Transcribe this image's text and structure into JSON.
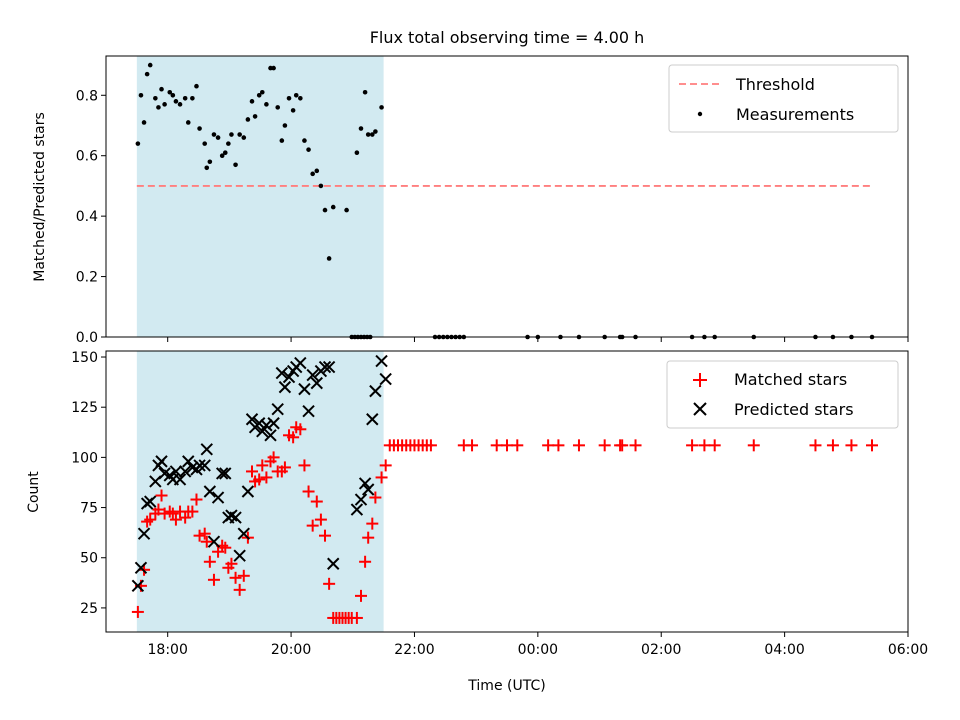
{
  "chart_data": [
    {
      "type": "scatter",
      "title": "Flux total observing time = 4.00 h",
      "xlabel": "",
      "ylabel": "Matched/Predicted stars",
      "ylim": [
        0,
        0.93
      ],
      "xlim": [
        "17:00",
        "06:00"
      ],
      "yticks": [
        0.0,
        0.2,
        0.4,
        0.6,
        0.8
      ],
      "ytick_labels": [
        "0.0",
        "0.2",
        "0.4",
        "0.6",
        "0.8"
      ],
      "legend": "top-right",
      "shaded_interval": {
        "start": "17:30",
        "end": "21:30",
        "color": "#add8e6"
      },
      "threshold": {
        "name": "Threshold",
        "y": 0.5,
        "x_start": "17:30",
        "x_end": "05:25",
        "color": "#ff7f7f",
        "style": "dashed"
      },
      "series": [
        {
          "name": "Measurements",
          "color": "#000000",
          "marker": "dot",
          "points": [
            [
              "17:31",
              0.64
            ],
            [
              "17:34",
              0.8
            ],
            [
              "17:37",
              0.71
            ],
            [
              "17:40",
              0.87
            ],
            [
              "17:43",
              0.9
            ],
            [
              "17:48",
              0.79
            ],
            [
              "17:51",
              0.76
            ],
            [
              "17:54",
              0.82
            ],
            [
              "17:57",
              0.77
            ],
            [
              "18:02",
              0.81
            ],
            [
              "18:05",
              0.8
            ],
            [
              "18:08",
              0.78
            ],
            [
              "18:12",
              0.77
            ],
            [
              "18:17",
              0.79
            ],
            [
              "18:20",
              0.71
            ],
            [
              "18:24",
              0.79
            ],
            [
              "18:28",
              0.83
            ],
            [
              "18:31",
              0.69
            ],
            [
              "18:36",
              0.64
            ],
            [
              "18:38",
              0.56
            ],
            [
              "18:41",
              0.58
            ],
            [
              "18:45",
              0.67
            ],
            [
              "18:49",
              0.66
            ],
            [
              "18:53",
              0.6
            ],
            [
              "18:56",
              0.61
            ],
            [
              "18:59",
              0.64
            ],
            [
              "19:02",
              0.67
            ],
            [
              "19:06",
              0.57
            ],
            [
              "19:10",
              0.67
            ],
            [
              "19:14",
              0.66
            ],
            [
              "19:18",
              0.72
            ],
            [
              "19:22",
              0.78
            ],
            [
              "19:25",
              0.73
            ],
            [
              "19:29",
              0.8
            ],
            [
              "19:32",
              0.81
            ],
            [
              "19:36",
              0.77
            ],
            [
              "19:40",
              0.89
            ],
            [
              "19:43",
              0.89
            ],
            [
              "19:47",
              0.76
            ],
            [
              "19:51",
              0.65
            ],
            [
              "19:54",
              0.7
            ],
            [
              "19:58",
              0.79
            ],
            [
              "20:02",
              0.75
            ],
            [
              "20:05",
              0.8
            ],
            [
              "20:09",
              0.79
            ],
            [
              "20:13",
              0.65
            ],
            [
              "20:17",
              0.62
            ],
            [
              "20:21",
              0.54
            ],
            [
              "20:25",
              0.55
            ],
            [
              "20:29",
              0.5
            ],
            [
              "20:33",
              0.42
            ],
            [
              "20:37",
              0.26
            ],
            [
              "20:41",
              0.43
            ],
            [
              "20:54",
              0.42
            ],
            [
              "21:04",
              0.61
            ],
            [
              "21:08",
              0.69
            ],
            [
              "21:12",
              0.81
            ],
            [
              "21:15",
              0.67
            ],
            [
              "21:19",
              0.67
            ],
            [
              "21:22",
              0.68
            ],
            [
              "21:28",
              0.76
            ],
            [
              "20:59",
              0.0
            ],
            [
              "21:02",
              0.0
            ],
            [
              "21:05",
              0.0
            ],
            [
              "21:08",
              0.0
            ],
            [
              "21:11",
              0.0
            ],
            [
              "21:14",
              0.0
            ],
            [
              "21:17",
              0.0
            ],
            [
              "22:20",
              0.0
            ],
            [
              "22:24",
              0.0
            ],
            [
              "22:28",
              0.0
            ],
            [
              "22:32",
              0.0
            ],
            [
              "22:36",
              0.0
            ],
            [
              "22:40",
              0.0
            ],
            [
              "22:44",
              0.0
            ],
            [
              "22:48",
              0.0
            ],
            [
              "23:50",
              0.0
            ],
            [
              "24:00",
              0.0
            ],
            [
              "24:22",
              0.0
            ],
            [
              "24:40",
              0.0
            ],
            [
              "25:05",
              0.0
            ],
            [
              "25:20",
              0.0
            ],
            [
              "25:22",
              0.0
            ],
            [
              "25:35",
              0.0
            ],
            [
              "26:30",
              0.0
            ],
            [
              "26:42",
              0.0
            ],
            [
              "26:52",
              0.0
            ],
            [
              "27:30",
              0.0
            ],
            [
              "28:30",
              0.0
            ],
            [
              "28:47",
              0.0
            ],
            [
              "29:05",
              0.0
            ],
            [
              "29:25",
              0.0
            ]
          ]
        }
      ]
    },
    {
      "type": "scatter",
      "title": "",
      "xlabel": "Time (UTC)",
      "ylabel": "Count",
      "ylim": [
        13,
        153
      ],
      "xlim": [
        "17:00",
        "06:00"
      ],
      "xticks": [
        "18:00",
        "20:00",
        "22:00",
        "00:00",
        "02:00",
        "04:00",
        "06:00"
      ],
      "yticks": [
        25,
        50,
        75,
        100,
        125,
        150
      ],
      "ytick_labels": [
        "25",
        "50",
        "75",
        "100",
        "125",
        "150"
      ],
      "legend": "top-right",
      "shaded_interval": {
        "start": "17:30",
        "end": "21:30",
        "color": "#add8e6"
      },
      "series": [
        {
          "name": "Matched stars",
          "color": "#ff0000",
          "marker": "plus",
          "points": [
            [
              "17:31",
              23
            ],
            [
              "17:34",
              36
            ],
            [
              "17:37",
              44
            ],
            [
              "17:40",
              68
            ],
            [
              "17:43",
              69
            ],
            [
              "17:48",
              72
            ],
            [
              "17:51",
              74
            ],
            [
              "17:54",
              81
            ],
            [
              "17:57",
              72
            ],
            [
              "18:02",
              73
            ],
            [
              "18:05",
              72
            ],
            [
              "18:08",
              69
            ],
            [
              "18:12",
              73
            ],
            [
              "18:17",
              70
            ],
            [
              "18:20",
              73
            ],
            [
              "18:24",
              73
            ],
            [
              "18:28",
              79
            ],
            [
              "18:31",
              61
            ],
            [
              "18:36",
              62
            ],
            [
              "18:38",
              58
            ],
            [
              "18:41",
              48
            ],
            [
              "18:45",
              39
            ],
            [
              "18:49",
              53
            ],
            [
              "18:53",
              56
            ],
            [
              "18:56",
              55
            ],
            [
              "18:59",
              45
            ],
            [
              "19:02",
              47
            ],
            [
              "19:06",
              40
            ],
            [
              "19:10",
              34
            ],
            [
              "19:14",
              41
            ],
            [
              "19:18",
              60
            ],
            [
              "19:22",
              93
            ],
            [
              "19:25",
              88
            ],
            [
              "19:29",
              89
            ],
            [
              "19:32",
              96
            ],
            [
              "19:36",
              90
            ],
            [
              "19:40",
              98
            ],
            [
              "19:43",
              100
            ],
            [
              "19:47",
              93
            ],
            [
              "19:51",
              93
            ],
            [
              "19:54",
              95
            ],
            [
              "19:58",
              111
            ],
            [
              "20:02",
              110
            ],
            [
              "20:05",
              115
            ],
            [
              "20:09",
              114
            ],
            [
              "20:13",
              96
            ],
            [
              "20:17",
              83
            ],
            [
              "20:21",
              66
            ],
            [
              "20:25",
              78
            ],
            [
              "20:29",
              69
            ],
            [
              "20:33",
              61
            ],
            [
              "20:37",
              37
            ],
            [
              "20:41",
              20
            ],
            [
              "20:44",
              20
            ],
            [
              "20:47",
              20
            ],
            [
              "20:50",
              20
            ],
            [
              "20:53",
              20
            ],
            [
              "20:56",
              20
            ],
            [
              "20:59",
              20
            ],
            [
              "21:04",
              20
            ],
            [
              "21:08",
              31
            ],
            [
              "21:12",
              48
            ],
            [
              "21:15",
              60
            ],
            [
              "21:19",
              67
            ],
            [
              "21:22",
              80
            ],
            [
              "21:28",
              90
            ],
            [
              "21:32",
              96
            ],
            [
              "21:36",
              106
            ],
            [
              "21:40",
              106
            ],
            [
              "21:44",
              106
            ],
            [
              "21:48",
              106
            ],
            [
              "21:52",
              106
            ],
            [
              "21:56",
              106
            ],
            [
              "22:00",
              106
            ],
            [
              "22:04",
              106
            ],
            [
              "22:08",
              106
            ],
            [
              "22:12",
              106
            ],
            [
              "22:16",
              106
            ],
            [
              "22:48",
              106
            ],
            [
              "22:56",
              106
            ],
            [
              "23:20",
              106
            ],
            [
              "23:30",
              106
            ],
            [
              "23:40",
              106
            ],
            [
              "24:10",
              106
            ],
            [
              "24:20",
              106
            ],
            [
              "24:40",
              106
            ],
            [
              "25:05",
              106
            ],
            [
              "25:20",
              106
            ],
            [
              "25:22",
              106
            ],
            [
              "25:35",
              106
            ],
            [
              "26:30",
              106
            ],
            [
              "26:42",
              106
            ],
            [
              "26:52",
              106
            ],
            [
              "27:30",
              106
            ],
            [
              "28:30",
              106
            ],
            [
              "28:47",
              106
            ],
            [
              "29:05",
              106
            ],
            [
              "29:25",
              106
            ]
          ]
        },
        {
          "name": "Predicted stars",
          "color": "#000000",
          "marker": "x",
          "points": [
            [
              "17:31",
              36
            ],
            [
              "17:34",
              45
            ],
            [
              "17:37",
              62
            ],
            [
              "17:40",
              77
            ],
            [
              "17:43",
              78
            ],
            [
              "17:48",
              88
            ],
            [
              "17:51",
              96
            ],
            [
              "17:54",
              98
            ],
            [
              "17:57",
              92
            ],
            [
              "18:02",
              91
            ],
            [
              "18:05",
              89
            ],
            [
              "18:08",
              93
            ],
            [
              "18:12",
              89
            ],
            [
              "18:17",
              93
            ],
            [
              "18:20",
              98
            ],
            [
              "18:24",
              95
            ],
            [
              "18:28",
              94
            ],
            [
              "18:31",
              96
            ],
            [
              "18:36",
              96
            ],
            [
              "18:38",
              104
            ],
            [
              "18:41",
              83
            ],
            [
              "18:45",
              58
            ],
            [
              "18:49",
              80
            ],
            [
              "18:53",
              92
            ],
            [
              "18:56",
              92
            ],
            [
              "18:59",
              70
            ],
            [
              "19:02",
              71
            ],
            [
              "19:06",
              70
            ],
            [
              "19:10",
              51
            ],
            [
              "19:14",
              62
            ],
            [
              "19:18",
              83
            ],
            [
              "19:22",
              119
            ],
            [
              "19:25",
              115
            ],
            [
              "19:29",
              117
            ],
            [
              "19:32",
              113
            ],
            [
              "19:36",
              116
            ],
            [
              "19:40",
              111
            ],
            [
              "19:43",
              117
            ],
            [
              "19:47",
              124
            ],
            [
              "19:51",
              142
            ],
            [
              "19:54",
              135
            ],
            [
              "19:58",
              140
            ],
            [
              "20:02",
              143
            ],
            [
              "20:05",
              145
            ],
            [
              "20:09",
              147
            ],
            [
              "20:13",
              134
            ],
            [
              "20:17",
              123
            ],
            [
              "20:21",
              141
            ],
            [
              "20:25",
              137
            ],
            [
              "20:29",
              143
            ],
            [
              "20:33",
              145
            ],
            [
              "20:37",
              145
            ],
            [
              "20:41",
              47
            ],
            [
              "21:04",
              74
            ],
            [
              "21:08",
              79
            ],
            [
              "21:12",
              87
            ],
            [
              "21:15",
              84
            ],
            [
              "21:19",
              119
            ],
            [
              "21:22",
              133
            ],
            [
              "21:28",
              148
            ],
            [
              "21:32",
              139
            ]
          ]
        }
      ]
    }
  ]
}
